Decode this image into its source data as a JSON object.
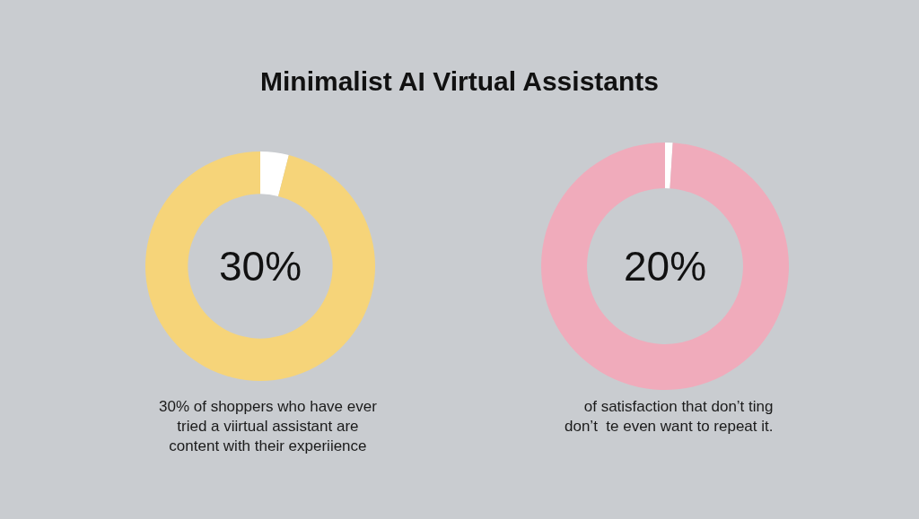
{
  "chart_data": [
    {
      "type": "donut",
      "title": "Minimalist AI Virtual Assistants",
      "categories": [
        null,
        null
      ],
      "values": [
        4,
        96
      ],
      "colors": [
        "#ffffff",
        "#f6d479"
      ],
      "annotations": [
        "30%",
        "30% of shoppers who have ever\ntried a viirtual assistant are\ncontent with their experiience"
      ]
    },
    {
      "type": "donut",
      "categories": [
        null,
        null
      ],
      "values": [
        1,
        99
      ],
      "colors": [
        "#ffffff",
        "#f0abbb"
      ],
      "annotations": [
        "20%",
        "of satisfaction that don’t ting\ndon’t  te even want to repeat it."
      ]
    }
  ]
}
